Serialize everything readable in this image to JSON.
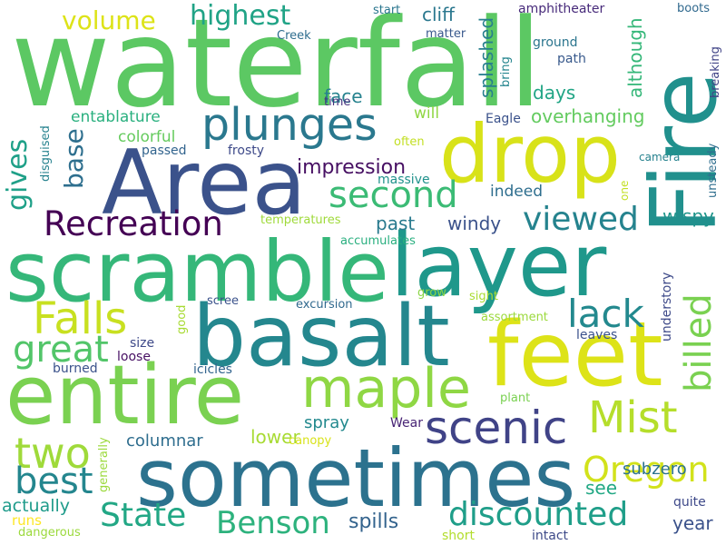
{
  "words": [
    {
      "text": "waterfall",
      "color": "#5cc863"
    },
    {
      "text": "Fire",
      "color": "#21908d"
    },
    {
      "text": "drop",
      "color": "#d8e219"
    },
    {
      "text": "Area",
      "color": "#3b528b"
    },
    {
      "text": "scramble",
      "color": "#35b779"
    },
    {
      "text": "layer",
      "color": "#1f988b"
    },
    {
      "text": "basalt",
      "color": "#24878e"
    },
    {
      "text": "feet",
      "color": "#dde318"
    },
    {
      "text": "entire",
      "color": "#7ad151"
    },
    {
      "text": "sometimes",
      "color": "#2c728e"
    },
    {
      "text": "maple",
      "color": "#8fd744"
    },
    {
      "text": "plunges",
      "color": "#2a788e"
    },
    {
      "text": "second",
      "color": "#3bbb75"
    },
    {
      "text": "Recreation",
      "color": "#440154"
    },
    {
      "text": "Falls",
      "color": "#c8e020"
    },
    {
      "text": "scenic",
      "color": "#404387"
    },
    {
      "text": "Mist",
      "color": "#b5de2b"
    },
    {
      "text": "billed",
      "color": "#7ad151"
    },
    {
      "text": "viewed",
      "color": "#25838e"
    },
    {
      "text": "lack",
      "color": "#23898e"
    },
    {
      "text": "great",
      "color": "#52c569"
    },
    {
      "text": "two",
      "color": "#9fda3a"
    },
    {
      "text": "best",
      "color": "#24868e"
    },
    {
      "text": "Oregon",
      "color": "#d2e21b"
    },
    {
      "text": "State",
      "color": "#22a785"
    },
    {
      "text": "Benson",
      "color": "#2db27d"
    },
    {
      "text": "discounted",
      "color": "#1f9e89"
    },
    {
      "text": "volume",
      "color": "#dde318"
    },
    {
      "text": "highest",
      "color": "#20a386"
    },
    {
      "text": "gives",
      "color": "#1fa088"
    },
    {
      "text": "base",
      "color": "#2e6f8e"
    },
    {
      "text": "impression",
      "color": "#471063"
    },
    {
      "text": "entablature",
      "color": "#2ab07f"
    },
    {
      "text": "colorful",
      "color": "#65cb5e"
    },
    {
      "text": "overhanging",
      "color": "#63cb5f"
    },
    {
      "text": "cliff",
      "color": "#2a778e"
    },
    {
      "text": "face",
      "color": "#26828e"
    },
    {
      "text": "splashed",
      "color": "#277f8e"
    },
    {
      "text": "days",
      "color": "#21a585"
    },
    {
      "text": "although",
      "color": "#35b779"
    },
    {
      "text": "will",
      "color": "#90d743"
    },
    {
      "text": "indeed",
      "color": "#2e6e8e"
    },
    {
      "text": "past",
      "color": "#297a8e"
    },
    {
      "text": "windy",
      "color": "#3b528b"
    },
    {
      "text": "wispy",
      "color": "#1f958b"
    },
    {
      "text": "spray",
      "color": "#23898e"
    },
    {
      "text": "columnar",
      "color": "#2e6d8e"
    },
    {
      "text": "lower",
      "color": "#a8db34"
    },
    {
      "text": "subzero",
      "color": "#2c728e"
    },
    {
      "text": "spills",
      "color": "#33638d"
    },
    {
      "text": "year",
      "color": "#3b528b"
    },
    {
      "text": "see",
      "color": "#22a884"
    },
    {
      "text": "actually",
      "color": "#1e9b8a"
    },
    {
      "text": "runs",
      "color": "#fde725"
    },
    {
      "text": "dangerous",
      "color": "#9bd93c"
    },
    {
      "text": "short",
      "color": "#b2dd2d"
    },
    {
      "text": "intact",
      "color": "#3e4a89"
    },
    {
      "text": "quite",
      "color": "#3e4989"
    },
    {
      "text": "Creek",
      "color": "#2e6d8e"
    },
    {
      "text": "start",
      "color": "#2a768e"
    },
    {
      "text": "matter",
      "color": "#38588c"
    },
    {
      "text": "amphitheater",
      "color": "#472a7a"
    },
    {
      "text": "boots",
      "color": "#30698e"
    },
    {
      "text": "ground",
      "color": "#2b758e"
    },
    {
      "text": "path",
      "color": "#38598c"
    },
    {
      "text": "bring",
      "color": "#25858e"
    },
    {
      "text": "time",
      "color": "#46337f"
    },
    {
      "text": "Eagle",
      "color": "#3b528b"
    },
    {
      "text": "breaking",
      "color": "#414487"
    },
    {
      "text": "passed",
      "color": "#32648e"
    },
    {
      "text": "frosty",
      "color": "#3e4a89"
    },
    {
      "text": "often",
      "color": "#c2df23"
    },
    {
      "text": "disguised",
      "color": "#26828e"
    },
    {
      "text": "massive",
      "color": "#20928c"
    },
    {
      "text": "camera",
      "color": "#26828e"
    },
    {
      "text": "one",
      "color": "#c2df23"
    },
    {
      "text": "unsteady",
      "color": "#2e6e8e"
    },
    {
      "text": "temperatures",
      "color": "#9fda3a"
    },
    {
      "text": "accumulates",
      "color": "#29af7f"
    },
    {
      "text": "grow",
      "color": "#8bd646"
    },
    {
      "text": "sight",
      "color": "#aadc32"
    },
    {
      "text": "excursion",
      "color": "#30698e"
    },
    {
      "text": "scree",
      "color": "#3b528b"
    },
    {
      "text": "good",
      "color": "#a8db34"
    },
    {
      "text": "assortment",
      "color": "#9bd93c"
    },
    {
      "text": "understory",
      "color": "#3e4a89"
    },
    {
      "text": "leaves",
      "color": "#3b528b"
    },
    {
      "text": "size",
      "color": "#3e4989"
    },
    {
      "text": "loose",
      "color": "#471063"
    },
    {
      "text": "burned",
      "color": "#3b528b"
    },
    {
      "text": "icicles",
      "color": "#32648e"
    },
    {
      "text": "plant",
      "color": "#7ad151"
    },
    {
      "text": "Wear",
      "color": "#482475"
    },
    {
      "text": "canopy",
      "color": "#d8e219"
    },
    {
      "text": "generally",
      "color": "#9bd93c"
    }
  ]
}
